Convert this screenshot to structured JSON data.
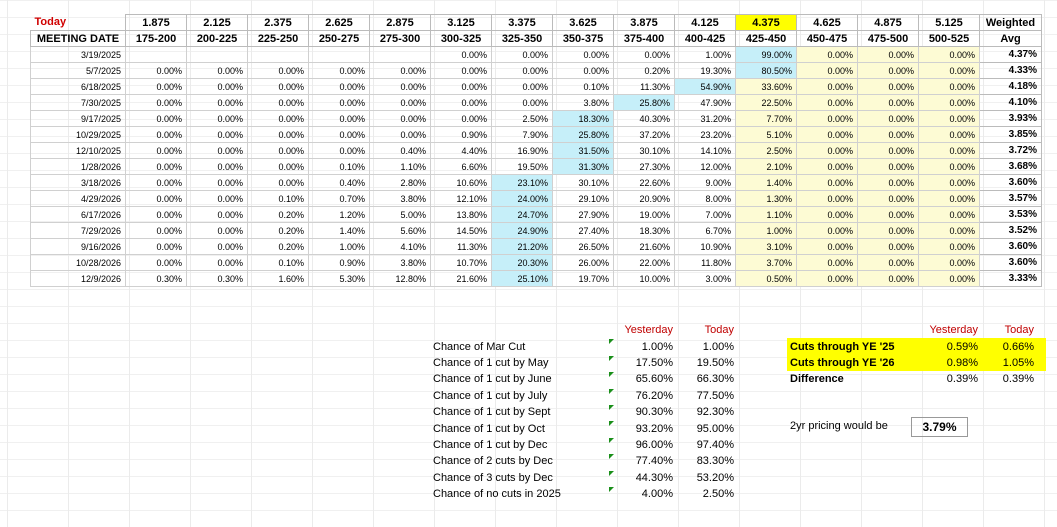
{
  "corner_label": "Today",
  "meeting_date_label": "MEETING DATE",
  "rate_headers": [
    "1.875",
    "2.125",
    "2.375",
    "2.625",
    "2.875",
    "3.125",
    "3.375",
    "3.625",
    "3.875",
    "4.125",
    "4.375",
    "4.625",
    "4.875",
    "5.125"
  ],
  "range_headers": [
    "175-200",
    "200-225",
    "225-250",
    "250-275",
    "275-300",
    "300-325",
    "325-350",
    "350-375",
    "375-400",
    "400-425",
    "425-450",
    "450-475",
    "475-500",
    "500-525"
  ],
  "weighted_label": "Weighted",
  "avg_label": "Avg",
  "rows": [
    {
      "date": "3/19/2025",
      "vals": [
        "",
        "",
        "",
        "",
        "",
        "0.00%",
        "0.00%",
        "0.00%",
        "0.00%",
        "1.00%",
        "99.00%",
        "0.00%",
        "0.00%",
        "0.00%"
      ],
      "avg": "4.37%"
    },
    {
      "date": "5/7/2025",
      "vals": [
        "0.00%",
        "0.00%",
        "0.00%",
        "0.00%",
        "0.00%",
        "0.00%",
        "0.00%",
        "0.00%",
        "0.20%",
        "19.30%",
        "80.50%",
        "0.00%",
        "0.00%",
        "0.00%"
      ],
      "avg": "4.33%"
    },
    {
      "date": "6/18/2025",
      "vals": [
        "0.00%",
        "0.00%",
        "0.00%",
        "0.00%",
        "0.00%",
        "0.00%",
        "0.00%",
        "0.10%",
        "11.30%",
        "54.90%",
        "33.60%",
        "0.00%",
        "0.00%",
        "0.00%"
      ],
      "avg": "4.18%"
    },
    {
      "date": "7/30/2025",
      "vals": [
        "0.00%",
        "0.00%",
        "0.00%",
        "0.00%",
        "0.00%",
        "0.00%",
        "0.00%",
        "3.80%",
        "25.80%",
        "47.90%",
        "22.50%",
        "0.00%",
        "0.00%",
        "0.00%"
      ],
      "avg": "4.10%"
    },
    {
      "date": "9/17/2025",
      "vals": [
        "0.00%",
        "0.00%",
        "0.00%",
        "0.00%",
        "0.00%",
        "0.00%",
        "2.50%",
        "18.30%",
        "40.30%",
        "31.20%",
        "7.70%",
        "0.00%",
        "0.00%",
        "0.00%"
      ],
      "avg": "3.93%"
    },
    {
      "date": "10/29/2025",
      "vals": [
        "0.00%",
        "0.00%",
        "0.00%",
        "0.00%",
        "0.00%",
        "0.90%",
        "7.90%",
        "25.80%",
        "37.20%",
        "23.20%",
        "5.10%",
        "0.00%",
        "0.00%",
        "0.00%"
      ],
      "avg": "3.85%"
    },
    {
      "date": "12/10/2025",
      "vals": [
        "0.00%",
        "0.00%",
        "0.00%",
        "0.00%",
        "0.40%",
        "4.40%",
        "16.90%",
        "31.50%",
        "30.10%",
        "14.10%",
        "2.50%",
        "0.00%",
        "0.00%",
        "0.00%"
      ],
      "avg": "3.72%"
    },
    {
      "date": "1/28/2026",
      "vals": [
        "0.00%",
        "0.00%",
        "0.00%",
        "0.10%",
        "1.10%",
        "6.60%",
        "19.50%",
        "31.30%",
        "27.30%",
        "12.00%",
        "2.10%",
        "0.00%",
        "0.00%",
        "0.00%"
      ],
      "avg": "3.68%"
    },
    {
      "date": "3/18/2026",
      "vals": [
        "0.00%",
        "0.00%",
        "0.00%",
        "0.40%",
        "2.80%",
        "10.60%",
        "23.10%",
        "30.10%",
        "22.60%",
        "9.00%",
        "1.40%",
        "0.00%",
        "0.00%",
        "0.00%"
      ],
      "avg": "3.60%"
    },
    {
      "date": "4/29/2026",
      "vals": [
        "0.00%",
        "0.00%",
        "0.10%",
        "0.70%",
        "3.80%",
        "12.10%",
        "24.00%",
        "29.10%",
        "20.90%",
        "8.00%",
        "1.30%",
        "0.00%",
        "0.00%",
        "0.00%"
      ],
      "avg": "3.57%"
    },
    {
      "date": "6/17/2026",
      "vals": [
        "0.00%",
        "0.00%",
        "0.20%",
        "1.20%",
        "5.00%",
        "13.80%",
        "24.70%",
        "27.90%",
        "19.00%",
        "7.00%",
        "1.10%",
        "0.00%",
        "0.00%",
        "0.00%"
      ],
      "avg": "3.53%"
    },
    {
      "date": "7/29/2026",
      "vals": [
        "0.00%",
        "0.00%",
        "0.20%",
        "1.40%",
        "5.60%",
        "14.50%",
        "24.90%",
        "27.40%",
        "18.30%",
        "6.70%",
        "1.00%",
        "0.00%",
        "0.00%",
        "0.00%"
      ],
      "avg": "3.52%"
    },
    {
      "date": "9/16/2026",
      "vals": [
        "0.00%",
        "0.00%",
        "0.20%",
        "1.00%",
        "4.10%",
        "11.30%",
        "21.20%",
        "26.50%",
        "21.60%",
        "10.90%",
        "3.10%",
        "0.00%",
        "0.00%",
        "0.00%"
      ],
      "avg": "3.60%"
    },
    {
      "date": "10/28/2026",
      "vals": [
        "0.00%",
        "0.00%",
        "0.10%",
        "0.90%",
        "3.80%",
        "10.70%",
        "20.30%",
        "26.00%",
        "22.00%",
        "11.80%",
        "3.70%",
        "0.00%",
        "0.00%",
        "0.00%"
      ],
      "avg": "3.60%"
    },
    {
      "date": "12/9/2026",
      "vals": [
        "0.30%",
        "0.30%",
        "1.60%",
        "5.30%",
        "12.80%",
        "21.60%",
        "25.10%",
        "19.70%",
        "10.00%",
        "3.00%",
        "0.50%",
        "0.00%",
        "0.00%",
        "0.00%"
      ],
      "avg": "3.33%"
    }
  ],
  "highlight_colors": {
    "blue": "#c6eff9",
    "yellow_col": "#fdfbd4",
    "bright_yellow": "#ffff00",
    "red_text": "#c00000"
  },
  "chances": {
    "yesterday_label": "Yesterday",
    "today_label": "Today",
    "items": [
      {
        "label": "Chance of Mar Cut",
        "yesterday": "1.00%",
        "today": "1.00%"
      },
      {
        "label": "Chance of 1 cut by May",
        "yesterday": "17.50%",
        "today": "19.50%"
      },
      {
        "label": "Chance of 1 cut by June",
        "yesterday": "65.60%",
        "today": "66.30%"
      },
      {
        "label": "Chance of 1 cut by July",
        "yesterday": "76.20%",
        "today": "77.50%"
      },
      {
        "label": "Chance of 1 cut by Sept",
        "yesterday": "90.30%",
        "today": "92.30%"
      },
      {
        "label": "Chance of 1 cut by Oct",
        "yesterday": "93.20%",
        "today": "95.00%"
      },
      {
        "label": "Chance of 1 cut by Dec",
        "yesterday": "96.00%",
        "today": "97.40%"
      },
      {
        "label": "Chance of 2 cuts by Dec",
        "yesterday": "77.40%",
        "today": "83.30%"
      },
      {
        "label": "Chance of 3 cuts by Dec",
        "yesterday": "44.30%",
        "today": "53.20%"
      },
      {
        "label": "Chance of no cuts in 2025",
        "yesterday": "4.00%",
        "today": "2.50%"
      }
    ]
  },
  "cuts": {
    "yesterday_label": "Yesterday",
    "today_label": "Today",
    "items": [
      {
        "label": "Cuts through YE '25",
        "yesterday": "0.59%",
        "today": "0.66%"
      },
      {
        "label": "Cuts through YE '26",
        "yesterday": "0.98%",
        "today": "1.05%"
      },
      {
        "label": "Difference",
        "yesterday": "0.39%",
        "today": "0.39%"
      }
    ]
  },
  "two_year": {
    "label": "2yr pricing would be",
    "value": "3.79%"
  }
}
